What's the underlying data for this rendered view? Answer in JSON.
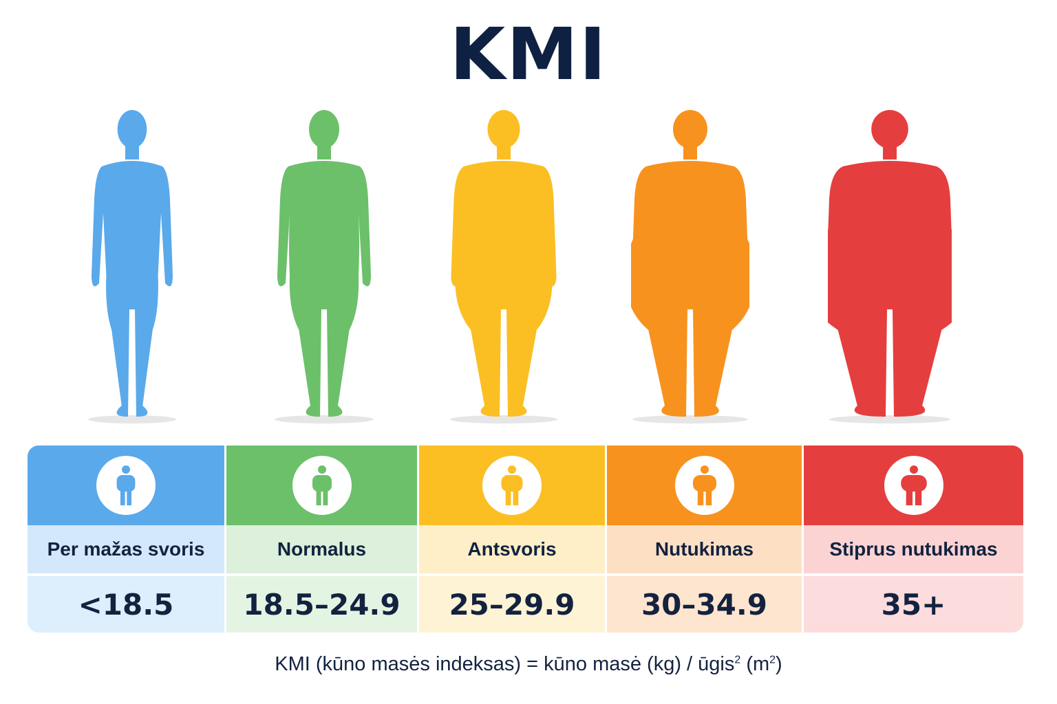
{
  "title": "KMI",
  "categories": [
    {
      "label": "Per mažas svoris",
      "range": "<18.5",
      "color": "#5aa9eb",
      "light": "#ddeefc",
      "label_bg": "#d3e8fb",
      "icon": "thin-person-icon"
    },
    {
      "label": "Normalus",
      "range": "18.5–24.9",
      "color": "#6cc06a",
      "light": "#e4f4e3",
      "label_bg": "#dcf0db",
      "icon": "normal-person-icon"
    },
    {
      "label": "Antsvoris",
      "range": "25–29.9",
      "color": "#fbbf24",
      "light": "#fff3d6",
      "label_bg": "#ffefc8",
      "icon": "overweight-person-icon"
    },
    {
      "label": "Nutukimas",
      "range": "30–34.9",
      "color": "#f7921e",
      "light": "#fee5cf",
      "label_bg": "#fde0c4",
      "icon": "obese-person-icon"
    },
    {
      "label": "Stiprus nutukimas",
      "range": "35+",
      "color": "#e53e3e",
      "light": "#fcdcdc",
      "label_bg": "#fbd3d3",
      "icon": "severely-obese-person-icon"
    }
  ],
  "formula": {
    "lhs": "KMI (kūno masės indeksas) = kūno masė (kg) / ūgis",
    "exp1": "2",
    "mid": " (m",
    "exp2": "2",
    "end": ")"
  }
}
